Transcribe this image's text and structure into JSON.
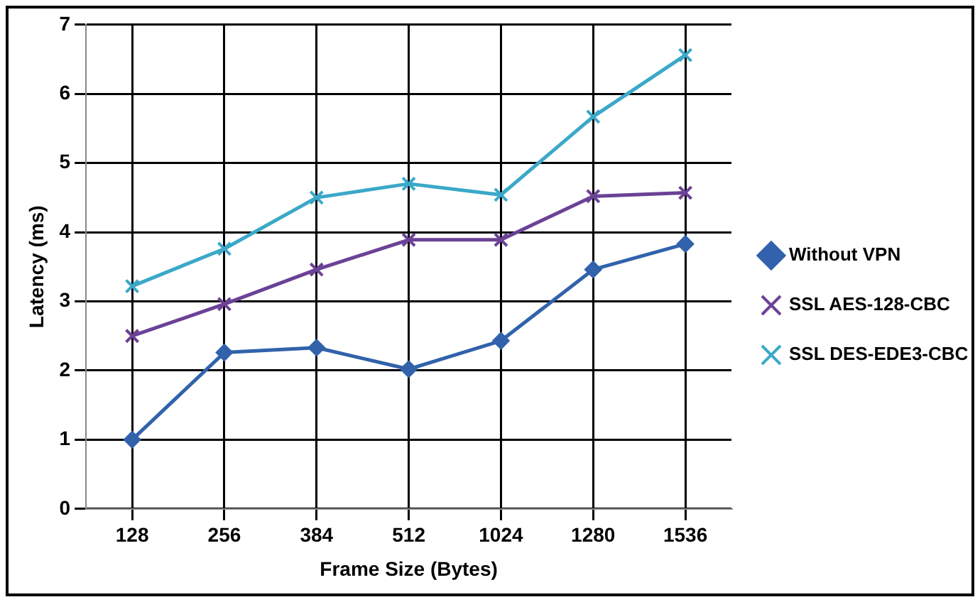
{
  "chart_data": {
    "type": "line",
    "xlabel": "Frame Size (Bytes)",
    "ylabel": "Latency (ms)",
    "categories": [
      "128",
      "256",
      "384",
      "512",
      "1024",
      "1280",
      "1536"
    ],
    "ylim": [
      0,
      7
    ],
    "yticks": [
      0,
      1,
      2,
      3,
      4,
      5,
      6,
      7
    ],
    "grid": true,
    "legend": "right",
    "series": [
      {
        "name": "Without VPN",
        "color": "#3162ab",
        "marker": "diamond",
        "values": [
          1.0,
          2.26,
          2.33,
          2.02,
          2.43,
          3.46,
          3.83
        ]
      },
      {
        "name": "SSL AES-128-CBC",
        "color": "#6b4296",
        "marker": "cross",
        "values": [
          2.5,
          2.96,
          3.46,
          3.89,
          3.89,
          4.52,
          4.57
        ]
      },
      {
        "name": "SSL DES-EDE3-CBC",
        "color": "#3ba8c8",
        "marker": "cross",
        "values": [
          3.22,
          3.76,
          4.5,
          4.7,
          4.54,
          5.67,
          6.56
        ]
      }
    ]
  }
}
